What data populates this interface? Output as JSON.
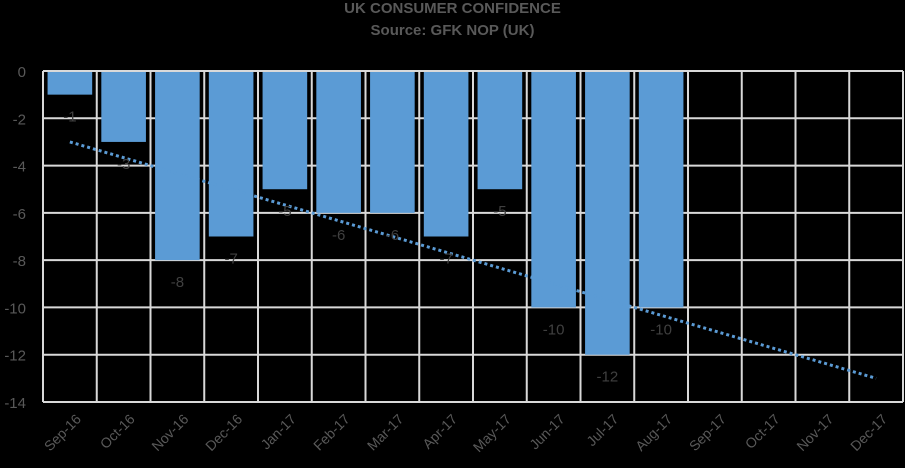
{
  "chart_data": {
    "type": "bar",
    "title": "UK CONSUMER CONFIDENCE",
    "subtitle": "Source: GFK NOP (UK)",
    "xlabel": "",
    "ylabel": "",
    "ylim": [
      -14,
      0
    ],
    "yticks": [
      0,
      -2,
      -4,
      -6,
      -8,
      -10,
      -12,
      -14
    ],
    "grid": true,
    "legend": "none",
    "categories": [
      "Sep-16",
      "Oct-16",
      "Nov-16",
      "Dec-16",
      "Jan-17",
      "Feb-17",
      "Mar-17",
      "Apr-17",
      "May-17",
      "Jun-17",
      "Jul-17",
      "Aug-17",
      "Sep-17",
      "Oct-17",
      "Nov-17",
      "Dec-17"
    ],
    "series": [
      {
        "name": "Consumer Confidence",
        "values": [
          -1,
          -3,
          -8,
          -7,
          -5,
          -6,
          -6,
          -7,
          -5,
          -10,
          -12,
          -10,
          null,
          null,
          null,
          null
        ],
        "color": "#5B9BD5"
      }
    ],
    "trendline": {
      "type": "linear",
      "style": "dotted",
      "color": "#5B9BD5",
      "start": {
        "category": "Sep-16",
        "value": -3.0
      },
      "end": {
        "category": "Dec-17",
        "value": -13.0
      }
    },
    "data_labels": [
      "-1",
      "-3",
      "-8",
      "-7",
      "-5",
      "-6",
      "-6",
      "-7",
      "-5",
      "-10",
      "-12",
      "-10"
    ]
  },
  "colors": {
    "background": "#000000",
    "bar": "#5B9BD5",
    "grid": "#D9D9D9",
    "text": "#595959",
    "label": "#404040"
  }
}
